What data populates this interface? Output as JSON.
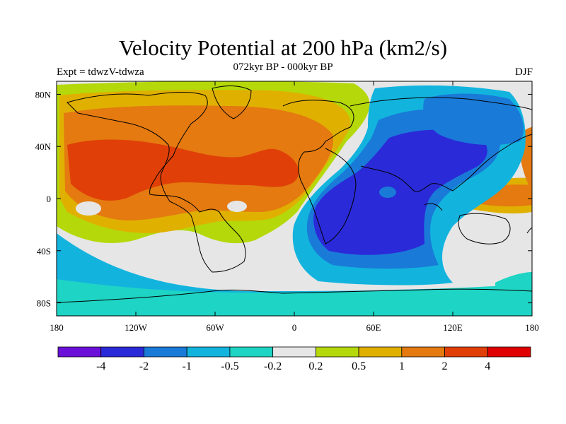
{
  "title": "Velocity Potential at 200 hPa (km2/s)",
  "subtitle": "072kyr BP - 000kyr BP",
  "left_label": "Expt = tdwzV-tdwza",
  "right_label": "DJF",
  "lat_ticks": [
    "80N",
    "40N",
    "0",
    "40S",
    "80S"
  ],
  "lon_ticks": [
    "180",
    "120W",
    "60W",
    "0",
    "60E",
    "120E",
    "180"
  ],
  "colorbar": {
    "labels": [
      "-4",
      "-2",
      "-1",
      "-0.5",
      "-0.2",
      "0.2",
      "0.5",
      "1",
      "2",
      "4"
    ],
    "colors": [
      "#6a10d8",
      "#2a2ad8",
      "#1a7ad8",
      "#12b4de",
      "#1ed4c4",
      "#e6e6e6",
      "#b4d80a",
      "#e0b000",
      "#e47a10",
      "#e04008",
      "#e00000"
    ]
  },
  "colors": {
    "ocean_base": "#e6e6e6",
    "coastline": "#000000"
  },
  "icons": [
    "coastline-overlay"
  ]
}
